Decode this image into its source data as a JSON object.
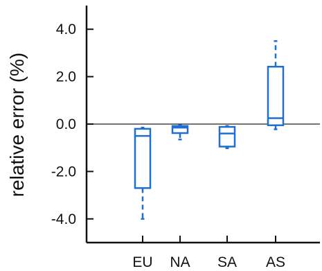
{
  "chart_data": {
    "type": "box",
    "title": "",
    "xlabel": "",
    "ylabel": "relative error (%)",
    "ylim": [
      -5,
      5
    ],
    "yticks": [
      -4.0,
      -2.0,
      0.0,
      2.0,
      4.0
    ],
    "ytick_labels": [
      "-4.0",
      "-2.0",
      "0.0",
      "2.0",
      "4.0"
    ],
    "categories": [
      "EU",
      "NA",
      "SA",
      "AS"
    ],
    "reference_line": 0.0,
    "box_color": "#1f6fd1",
    "axis_color": "#111111",
    "boxes": [
      {
        "category": "EU",
        "whisker_low": -4.0,
        "q1": -2.7,
        "median": -0.5,
        "q3": -0.2,
        "whisker_high": -0.15
      },
      {
        "category": "NA",
        "whisker_low": -0.65,
        "q1": -0.38,
        "median": -0.15,
        "q3": -0.08,
        "whisker_high": -0.05
      },
      {
        "category": "SA",
        "whisker_low": -1.02,
        "q1": -0.95,
        "median": -0.4,
        "q3": -0.12,
        "whisker_high": -0.08
      },
      {
        "category": "AS",
        "whisker_low": -0.22,
        "q1": -0.05,
        "median": 0.25,
        "q3": 2.42,
        "whisker_high": 3.5
      }
    ]
  }
}
